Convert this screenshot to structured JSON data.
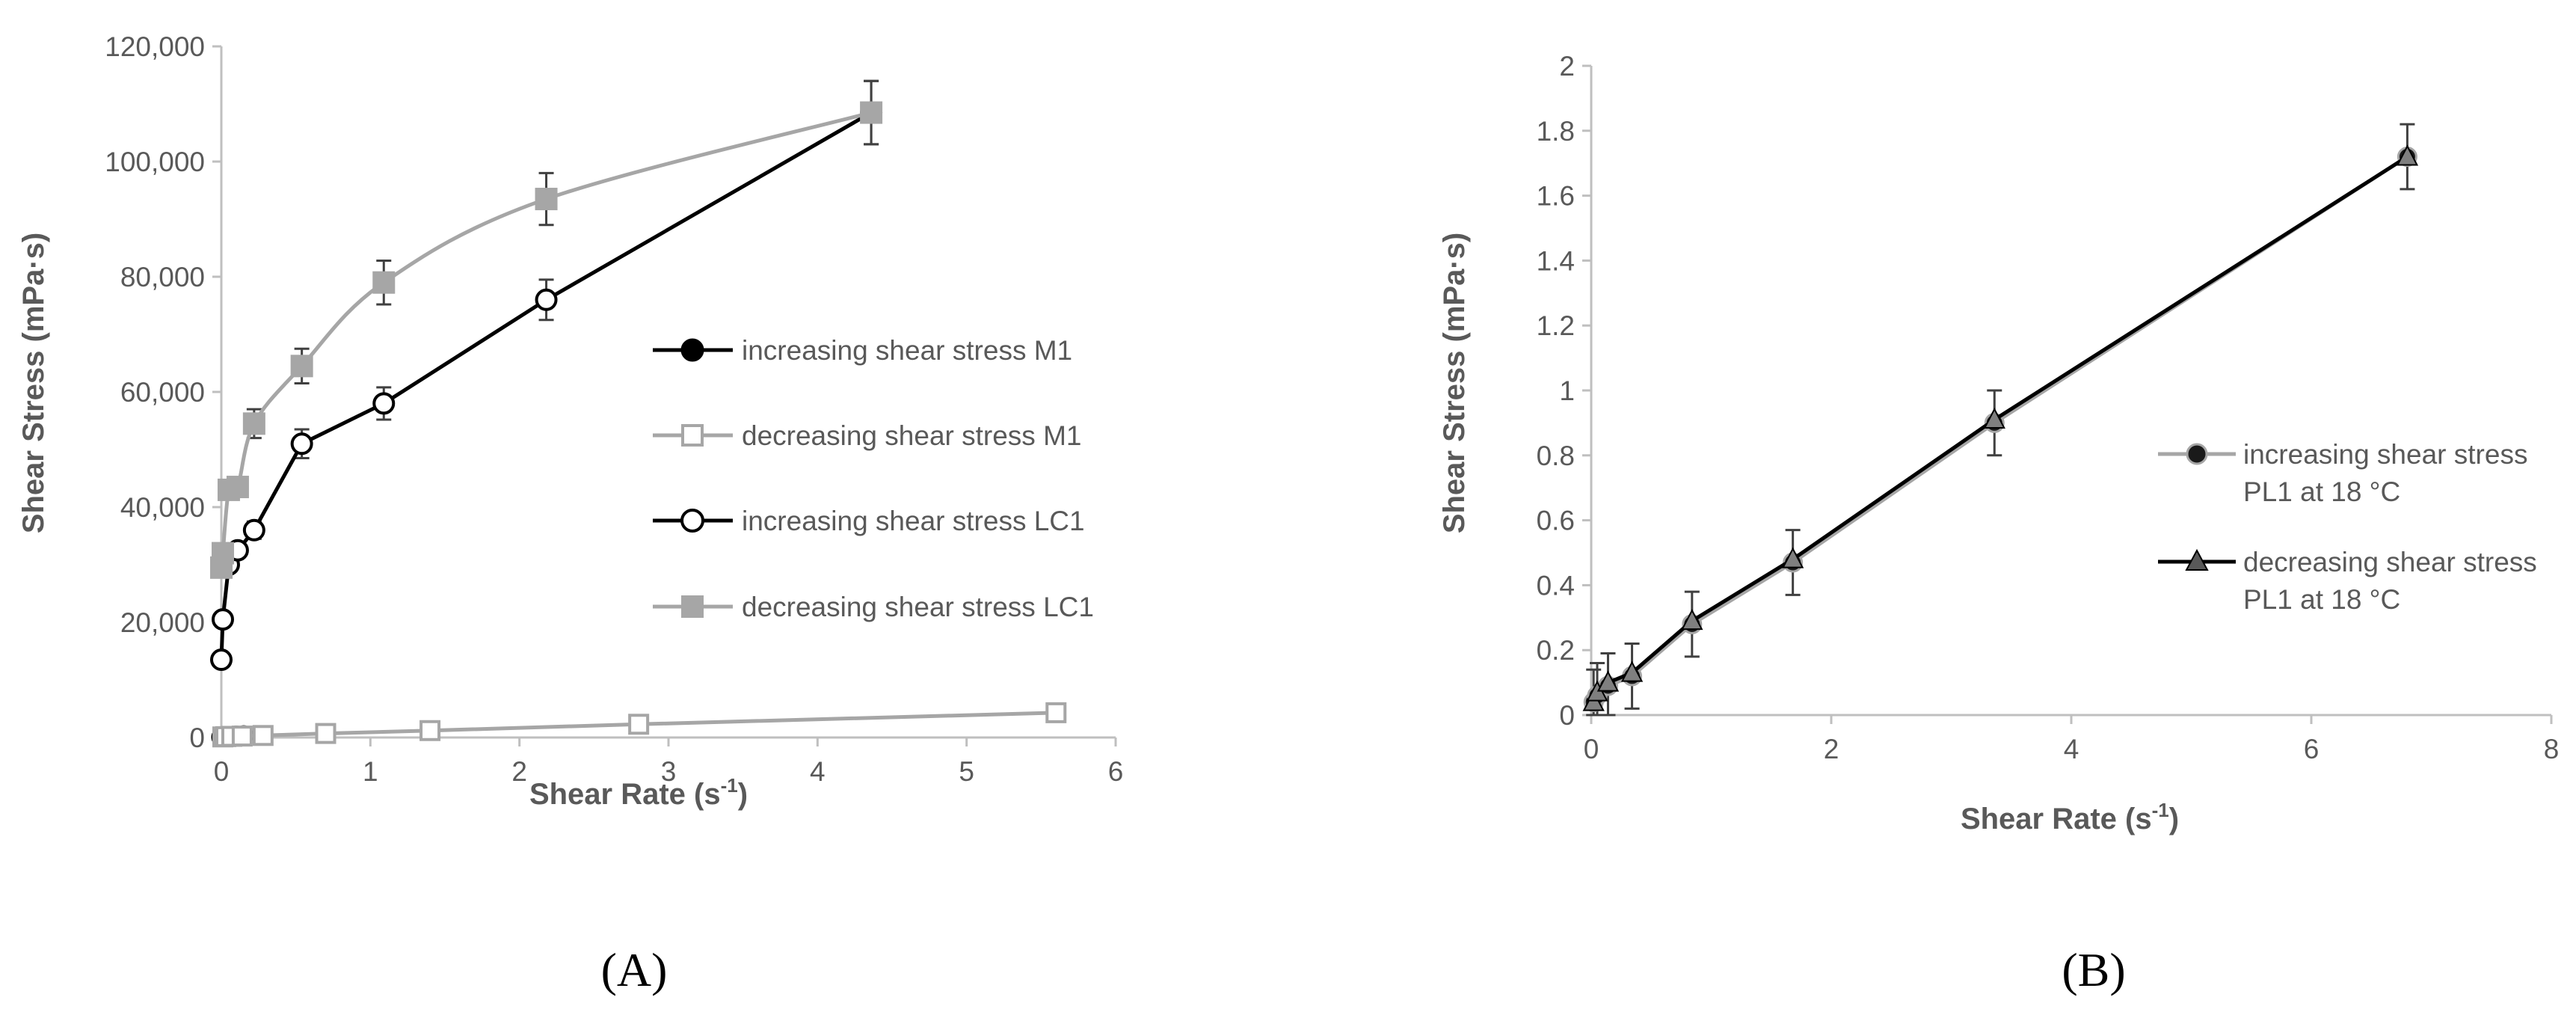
{
  "chart_data": [
    {
      "panel": "A",
      "panel_label": "(A)",
      "type": "line",
      "xlabel": "Shear Rate (s",
      "xlabel_sup": "-1",
      "xlabel_end": ")",
      "ylabel": "Shear Stress (mPa·s)",
      "xlim": [
        0,
        6
      ],
      "ylim": [
        0,
        120000
      ],
      "xticks": [
        "0",
        "1",
        "2",
        "3",
        "4",
        "5",
        "6"
      ],
      "yticks": [
        "0",
        "20,000",
        "40,000",
        "60,000",
        "80,000",
        "100,000",
        "120,000"
      ],
      "legend_position": "right",
      "series": [
        {
          "name": "increasing shear stress M1",
          "color": "#000000",
          "marker": "circle-filled",
          "smooth": false,
          "x": [
            0,
            0.01,
            0.02,
            0.05,
            0.1,
            0.15
          ],
          "y": [
            60,
            120,
            180,
            260,
            320,
            380
          ],
          "err": [
            0,
            0,
            0,
            0,
            0,
            0
          ]
        },
        {
          "name": "decreasing shear stress M1",
          "color": "#a6a6a6",
          "marker": "square-open",
          "smooth": false,
          "x": [
            0.01,
            0.03,
            0.07,
            0.14,
            0.28,
            0.7,
            1.4,
            2.8,
            5.6
          ],
          "y": [
            100,
            150,
            200,
            250,
            350,
            700,
            1200,
            2300,
            4300
          ],
          "err": [
            0,
            0,
            0,
            0,
            0,
            0,
            0,
            0,
            0
          ]
        },
        {
          "name": "increasing shear stress LC1",
          "color": "#000000",
          "marker": "circle-open",
          "smooth": false,
          "x": [
            0,
            0.01,
            0.05,
            0.11,
            0.22,
            0.54,
            1.09,
            2.18,
            4.36
          ],
          "y": [
            13500,
            20500,
            30000,
            32500,
            36000,
            51000,
            58000,
            76000,
            108500
          ],
          "err": [
            0,
            0,
            0,
            0,
            1500,
            2500,
            2800,
            3500,
            5500
          ]
        },
        {
          "name": "decreasing shear stress LC1",
          "color": "#a6a6a6",
          "marker": "square-filled",
          "smooth": true,
          "x": [
            0,
            0.01,
            0.05,
            0.11,
            0.22,
            0.54,
            1.09,
            2.18,
            4.36
          ],
          "y": [
            29500,
            32000,
            43000,
            43500,
            54500,
            64500,
            79000,
            93500,
            108500
          ],
          "err": [
            0,
            0,
            0,
            1500,
            2500,
            3000,
            3800,
            4500,
            5500
          ]
        }
      ]
    },
    {
      "panel": "B",
      "panel_label": "(B)",
      "type": "line",
      "xlabel": "Shear Rate (s",
      "xlabel_sup": "-1",
      "xlabel_end": ")",
      "ylabel": "Shear Stress (mPa·s)",
      "xlim": [
        0,
        8
      ],
      "ylim": [
        0,
        2
      ],
      "xticks": [
        "0",
        "2",
        "4",
        "6",
        "8"
      ],
      "yticks": [
        "0",
        "0.2",
        "0.4",
        "0.6",
        "0.8",
        "1",
        "1.2",
        "1.4",
        "1.6",
        "1.8",
        "2"
      ],
      "legend_position": "right",
      "series": [
        {
          "name_line1": "increasing shear stress",
          "name_line2": "PL1 at 18 °C",
          "color": "#a6a6a6",
          "marker": "circle-filled-dark",
          "smooth": false,
          "x": [
            0.02,
            0.05,
            0.14,
            0.34,
            0.84,
            1.68,
            3.36,
            6.8
          ],
          "y": [
            0.04,
            0.06,
            0.09,
            0.12,
            0.28,
            0.47,
            0.9,
            1.72
          ],
          "err": [
            0.1,
            0.1,
            0.1,
            0.1,
            0.1,
            0.1,
            0.1,
            0.1
          ]
        },
        {
          "name_line1": "decreasing shear stress",
          "name_line2": "PL1 at 18 °C",
          "color": "#000000",
          "marker": "triangle",
          "smooth": false,
          "x": [
            0.02,
            0.05,
            0.14,
            0.34,
            0.84,
            1.68,
            3.36,
            6.8
          ],
          "y": [
            0.04,
            0.07,
            0.1,
            0.13,
            0.29,
            0.48,
            0.91,
            1.72
          ],
          "err": [
            0,
            0,
            0,
            0,
            0,
            0,
            0,
            0
          ]
        }
      ]
    }
  ]
}
